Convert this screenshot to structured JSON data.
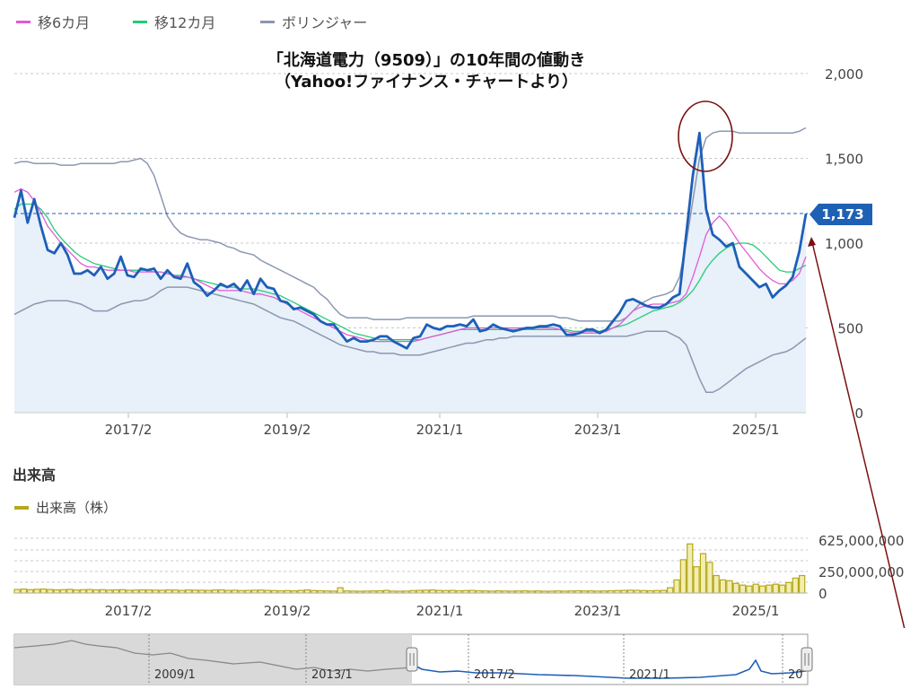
{
  "legend": [
    {
      "label": "移6カ月",
      "color": "#e05ad8"
    },
    {
      "label": "移12カ月",
      "color": "#22cc77"
    },
    {
      "label": "ボリンジャー",
      "color": "#8a98b0"
    }
  ],
  "title_line1": "「北海道電力（9509）」の10年間の値動き",
  "title_line2": "（Yahoo!ファイナンス・チャートより）",
  "current_price": "1,173",
  "volume_section_title": "出来高",
  "volume_legend": "出来高（株）",
  "navigator_labels": [
    "2009/1",
    "2013/1",
    "2017/2",
    "2021/1",
    "20"
  ],
  "colors": {
    "price": "#1e5fb8",
    "band": "#8a98b0",
    "ma6": "#e05ad8",
    "ma12": "#22cc77",
    "volume": "#b5a81e",
    "annotation": "#7a1010"
  },
  "chart_data": [
    {
      "type": "line",
      "x_tick_labels": [
        "2017/2",
        "2019/2",
        "2021/1",
        "2023/1",
        "2025/1"
      ],
      "y_tick_labels": [
        "2,000",
        "1,500",
        "1,000",
        "500",
        "0"
      ],
      "y_ticks": [
        2000,
        1500,
        1000,
        500,
        0
      ],
      "ylim": [
        0,
        2000
      ],
      "grid": true,
      "legend_position": "top-left",
      "series": [
        {
          "name": "price",
          "values": [
            1150,
            1310,
            1120,
            1260,
            1100,
            960,
            940,
            1000,
            930,
            820,
            820,
            840,
            810,
            860,
            790,
            820,
            920,
            810,
            800,
            850,
            840,
            850,
            790,
            840,
            800,
            790,
            880,
            770,
            740,
            690,
            720,
            760,
            740,
            760,
            720,
            780,
            700,
            790,
            740,
            730,
            660,
            650,
            610,
            620,
            600,
            580,
            540,
            520,
            520,
            470,
            420,
            440,
            420,
            420,
            430,
            450,
            450,
            420,
            400,
            380,
            440,
            450,
            520,
            500,
            490,
            510,
            510,
            520,
            510,
            550,
            480,
            490,
            520,
            500,
            490,
            480,
            490,
            500,
            500,
            510,
            510,
            520,
            510,
            460,
            460,
            470,
            490,
            490,
            470,
            490,
            540,
            590,
            660,
            670,
            650,
            630,
            620,
            620,
            640,
            680,
            700,
            1050,
            1400,
            1650,
            1200,
            1050,
            1020,
            980,
            1000,
            860,
            820,
            780,
            740,
            760,
            680,
            720,
            750,
            800,
            950,
            1173
          ]
        },
        {
          "name": "移6カ月",
          "values": [
            1300,
            1320,
            1300,
            1250,
            1180,
            1100,
            1050,
            1000,
            960,
            920,
            880,
            860,
            860,
            850,
            840,
            840,
            840,
            840,
            830,
            830,
            830,
            830,
            830,
            820,
            810,
            800,
            800,
            790,
            770,
            750,
            730,
            720,
            720,
            720,
            720,
            710,
            700,
            700,
            690,
            680,
            660,
            640,
            620,
            600,
            580,
            560,
            540,
            520,
            500,
            480,
            460,
            450,
            440,
            430,
            420,
            420,
            420,
            420,
            420,
            420,
            420,
            430,
            440,
            450,
            460,
            470,
            480,
            490,
            500,
            500,
            500,
            500,
            500,
            500,
            500,
            500,
            500,
            500,
            500,
            500,
            500,
            500,
            490,
            480,
            470,
            470,
            470,
            470,
            470,
            480,
            500,
            520,
            560,
            600,
            620,
            630,
            640,
            640,
            640,
            650,
            660,
            700,
            800,
            920,
            1050,
            1120,
            1160,
            1120,
            1060,
            1000,
            950,
            900,
            850,
            810,
            780,
            760,
            760,
            780,
            820,
            920
          ]
        },
        {
          "name": "移12カ月",
          "values": [
            1200,
            1230,
            1230,
            1230,
            1200,
            1150,
            1080,
            1030,
            990,
            950,
            920,
            900,
            880,
            870,
            860,
            850,
            840,
            840,
            840,
            840,
            840,
            830,
            830,
            820,
            810,
            810,
            800,
            790,
            780,
            770,
            760,
            750,
            740,
            740,
            730,
            730,
            730,
            720,
            710,
            700,
            690,
            670,
            650,
            630,
            610,
            590,
            570,
            550,
            530,
            510,
            490,
            470,
            460,
            450,
            440,
            430,
            430,
            430,
            430,
            430,
            430,
            430,
            440,
            450,
            460,
            470,
            480,
            490,
            490,
            490,
            490,
            490,
            490,
            490,
            490,
            490,
            490,
            490,
            490,
            490,
            490,
            490,
            490,
            490,
            480,
            480,
            480,
            480,
            480,
            490,
            500,
            510,
            520,
            540,
            560,
            580,
            600,
            610,
            620,
            630,
            650,
            680,
            720,
            780,
            850,
            900,
            940,
            970,
            990,
            1000,
            1000,
            990,
            960,
            920,
            880,
            840,
            830,
            830,
            850,
            870
          ]
        },
        {
          "name": "ボリンジャー上限",
          "values": [
            1470,
            1480,
            1480,
            1470,
            1470,
            1470,
            1470,
            1460,
            1460,
            1460,
            1470,
            1470,
            1470,
            1470,
            1470,
            1470,
            1480,
            1480,
            1490,
            1500,
            1470,
            1400,
            1280,
            1160,
            1100,
            1060,
            1040,
            1030,
            1020,
            1020,
            1010,
            1000,
            980,
            970,
            950,
            940,
            930,
            900,
            880,
            860,
            840,
            820,
            800,
            780,
            760,
            740,
            700,
            670,
            620,
            580,
            560,
            560,
            560,
            560,
            550,
            550,
            550,
            550,
            550,
            560,
            560,
            560,
            560,
            560,
            560,
            560,
            560,
            560,
            560,
            570,
            570,
            570,
            570,
            570,
            570,
            570,
            570,
            570,
            570,
            570,
            570,
            570,
            560,
            560,
            550,
            540,
            540,
            540,
            540,
            540,
            540,
            540,
            560,
            600,
            640,
            660,
            680,
            690,
            700,
            720,
            800,
            1000,
            1250,
            1500,
            1620,
            1650,
            1660,
            1660,
            1660,
            1650,
            1650,
            1650,
            1650,
            1650,
            1650,
            1650,
            1650,
            1650,
            1660,
            1680
          ]
        },
        {
          "name": "ボリンジャー下限",
          "values": [
            580,
            600,
            620,
            640,
            650,
            660,
            660,
            660,
            660,
            650,
            640,
            620,
            600,
            600,
            600,
            620,
            640,
            650,
            660,
            660,
            670,
            690,
            720,
            740,
            740,
            740,
            740,
            730,
            720,
            710,
            700,
            690,
            680,
            670,
            660,
            650,
            640,
            620,
            600,
            580,
            560,
            550,
            540,
            520,
            500,
            480,
            460,
            440,
            420,
            400,
            390,
            380,
            370,
            360,
            360,
            350,
            350,
            350,
            340,
            340,
            340,
            340,
            350,
            360,
            370,
            380,
            390,
            400,
            410,
            410,
            420,
            430,
            430,
            440,
            440,
            450,
            450,
            450,
            450,
            450,
            450,
            450,
            450,
            450,
            450,
            450,
            450,
            450,
            450,
            450,
            450,
            450,
            450,
            460,
            470,
            480,
            480,
            480,
            480,
            460,
            440,
            400,
            300,
            200,
            120,
            120,
            140,
            170,
            200,
            230,
            260,
            280,
            300,
            320,
            340,
            350,
            360,
            380,
            410,
            440
          ]
        }
      ]
    },
    {
      "type": "bar",
      "title": "出来高",
      "x_tick_labels": [
        "2017/2",
        "2019/2",
        "2021/1",
        "2023/1",
        "2025/1"
      ],
      "y_tick_labels": [
        "625,000,000",
        "250,000,000",
        "0"
      ],
      "y_ticks": [
        625000000,
        250000000,
        0
      ],
      "ylim": [
        0,
        625000000
      ],
      "series": [
        {
          "name": "出来高（株）",
          "values": [
            40000000,
            45000000,
            38000000,
            42000000,
            45000000,
            40000000,
            36000000,
            38000000,
            42000000,
            35000000,
            38000000,
            40000000,
            36000000,
            38000000,
            34000000,
            36000000,
            38000000,
            32000000,
            34000000,
            36000000,
            35000000,
            33000000,
            32000000,
            36000000,
            34000000,
            30000000,
            35000000,
            33000000,
            32000000,
            30000000,
            34000000,
            36000000,
            30000000,
            32000000,
            28000000,
            30000000,
            32000000,
            34000000,
            30000000,
            28000000,
            26000000,
            28000000,
            25000000,
            30000000,
            35000000,
            28000000,
            26000000,
            24000000,
            22000000,
            60000000,
            24000000,
            22000000,
            20000000,
            22000000,
            24000000,
            26000000,
            30000000,
            22000000,
            20000000,
            22000000,
            28000000,
            30000000,
            32000000,
            35000000,
            30000000,
            28000000,
            30000000,
            26000000,
            28000000,
            30000000,
            26000000,
            24000000,
            22000000,
            25000000,
            23000000,
            22000000,
            24000000,
            25000000,
            22000000,
            24000000,
            20000000,
            22000000,
            24000000,
            22000000,
            24000000,
            26000000,
            24000000,
            25000000,
            22000000,
            24000000,
            26000000,
            28000000,
            30000000,
            32000000,
            30000000,
            28000000,
            26000000,
            28000000,
            30000000,
            60000000,
            150000000,
            380000000,
            560000000,
            300000000,
            450000000,
            350000000,
            200000000,
            150000000,
            140000000,
            110000000,
            90000000,
            80000000,
            100000000,
            80000000,
            90000000,
            100000000,
            90000000,
            120000000,
            170000000,
            200000000
          ]
        }
      ]
    }
  ]
}
